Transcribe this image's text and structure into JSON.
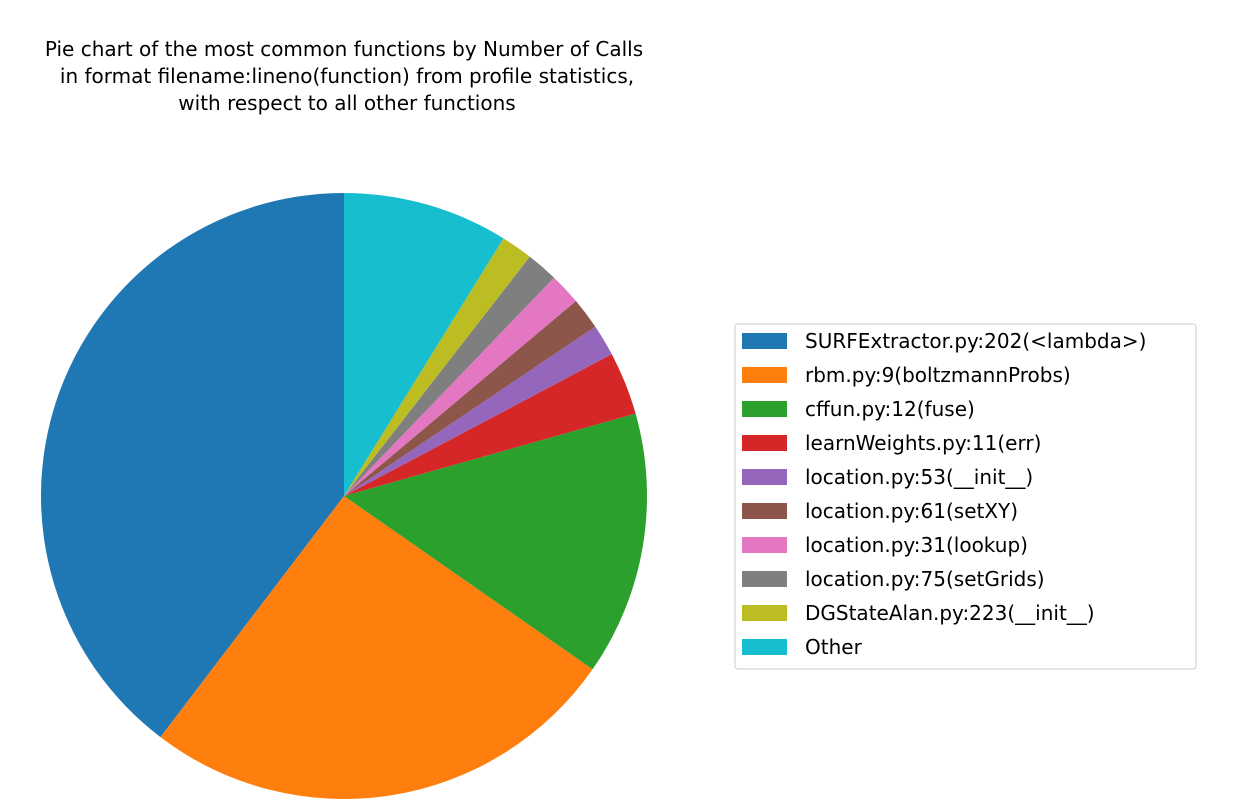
{
  "chart_data": {
    "type": "pie",
    "title_lines": [
      "Pie chart of the most common functions by Number of Calls",
      "in format filename:lineno(function) from profile statistics,",
      "with respect to all other functions"
    ],
    "legend_position": "right",
    "start_angle_deg": 90,
    "direction": "counterclockwise",
    "slices": [
      {
        "label": "SURFExtractor.py:202(<lambda>)",
        "value": 40.0,
        "color": "#1f77b4"
      },
      {
        "label": "rbm.py:9(boltzmannProbs)",
        "value": 25.9,
        "color": "#ff7f0e"
      },
      {
        "label": "cffun.py:12(fuse)",
        "value": 14.2,
        "color": "#2ca02c"
      },
      {
        "label": "learnWeights.py:11(err)",
        "value": 3.4,
        "color": "#d62728"
      },
      {
        "label": "location.py:53(__init__)",
        "value": 1.7,
        "color": "#9467bd"
      },
      {
        "label": "location.py:61(setXY)",
        "value": 1.7,
        "color": "#8c564b"
      },
      {
        "label": "location.py:31(lookup)",
        "value": 1.7,
        "color": "#e377c2"
      },
      {
        "label": "location.py:75(setGrids)",
        "value": 1.7,
        "color": "#7f7f7f"
      },
      {
        "label": "DGStateAlan.py:223(__init__)",
        "value": 1.7,
        "color": "#bcbd22"
      },
      {
        "label": "Other",
        "value": 8.9,
        "color": "#17becf"
      }
    ]
  }
}
